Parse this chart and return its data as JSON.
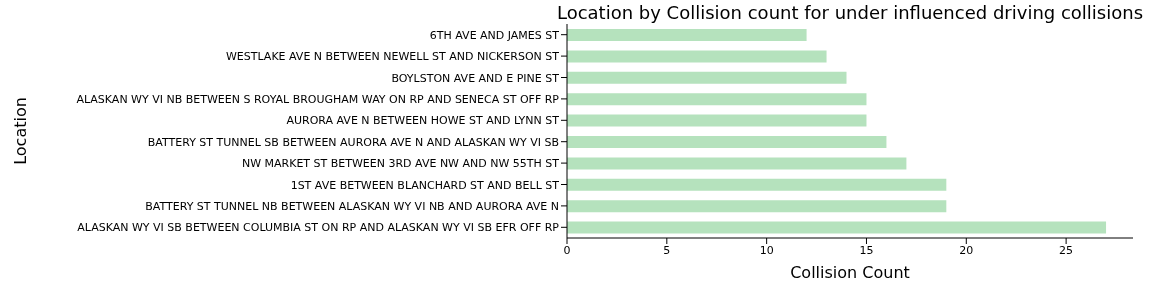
{
  "chart_data": {
    "type": "bar",
    "orientation": "horizontal",
    "title": "Location by Collision count for under influenced driving collisions",
    "xlabel": "Collision Count",
    "ylabel": "Location",
    "categories": [
      "6TH AVE AND JAMES ST",
      "WESTLAKE AVE N BETWEEN NEWELL ST AND NICKERSON ST",
      "BOYLSTON AVE AND E PINE ST",
      "ALASKAN WY VI NB BETWEEN S ROYAL BROUGHAM WAY ON RP AND SENECA ST OFF RP",
      "AURORA AVE N BETWEEN HOWE ST AND LYNN ST",
      "BATTERY ST TUNNEL SB BETWEEN AURORA AVE N AND ALASKAN WY VI SB",
      "NW MARKET ST BETWEEN 3RD AVE NW AND NW 55TH ST",
      "1ST AVE BETWEEN BLANCHARD ST AND BELL ST",
      "BATTERY ST TUNNEL NB BETWEEN ALASKAN WY VI NB AND AURORA AVE N",
      "ALASKAN WY VI SB BETWEEN COLUMBIA ST ON RP AND ALASKAN WY VI SB EFR OFF RP"
    ],
    "values": [
      12,
      13,
      14,
      15,
      15,
      16,
      17,
      19,
      19,
      27
    ],
    "color": "#b5e2bd",
    "xlim": [
      0,
      28.35
    ],
    "xticks": [
      0,
      5,
      10,
      15,
      20,
      25
    ],
    "grid": false
  }
}
